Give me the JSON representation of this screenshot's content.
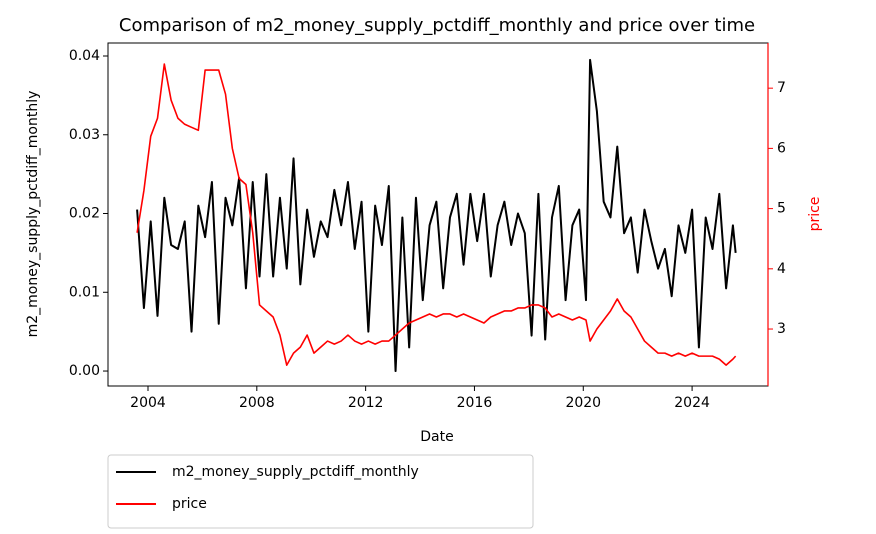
{
  "chart_data": {
    "type": "line",
    "title": "Comparison of m2_money_supply_pctdiff_monthly and price over time",
    "xlabel": "Date",
    "ylabel": "m2_money_supply_pctdiff_monthly",
    "y2label": "price",
    "x": [
      2003.6,
      2003.85,
      2004.1,
      2004.35,
      2004.6,
      2004.85,
      2005.1,
      2005.35,
      2005.6,
      2005.85,
      2006.1,
      2006.35,
      2006.6,
      2006.85,
      2007.1,
      2007.35,
      2007.6,
      2007.85,
      2008.1,
      2008.35,
      2008.6,
      2008.85,
      2009.1,
      2009.35,
      2009.6,
      2009.85,
      2010.1,
      2010.35,
      2010.6,
      2010.85,
      2011.1,
      2011.35,
      2011.6,
      2011.85,
      2012.1,
      2012.35,
      2012.6,
      2012.85,
      2013.1,
      2013.35,
      2013.6,
      2013.85,
      2014.1,
      2014.35,
      2014.6,
      2014.85,
      2015.1,
      2015.35,
      2015.6,
      2015.85,
      2016.1,
      2016.35,
      2016.6,
      2016.85,
      2017.1,
      2017.35,
      2017.6,
      2017.85,
      2018.1,
      2018.35,
      2018.6,
      2018.85,
      2019.1,
      2019.35,
      2019.6,
      2019.85,
      2020.1,
      2020.25,
      2020.5,
      2020.75,
      2021.0,
      2021.25,
      2021.5,
      2021.75,
      2022.0,
      2022.25,
      2022.5,
      2022.75,
      2023.0,
      2023.25,
      2023.5,
      2023.75,
      2024.0,
      2024.25,
      2024.5,
      2024.75,
      2025.0,
      2025.25,
      2025.5,
      2025.6
    ],
    "series": [
      {
        "name": "m2_money_supply_pctdiff_monthly",
        "color": "#000000",
        "values": [
          0.0205,
          0.008,
          0.019,
          0.007,
          0.022,
          0.016,
          0.0155,
          0.019,
          0.005,
          0.021,
          0.017,
          0.024,
          0.006,
          0.022,
          0.0185,
          0.0245,
          0.0105,
          0.024,
          0.012,
          0.025,
          0.012,
          0.022,
          0.013,
          0.027,
          0.011,
          0.0205,
          0.0145,
          0.019,
          0.017,
          0.023,
          0.0185,
          0.024,
          0.0155,
          0.0215,
          0.005,
          0.021,
          0.016,
          0.0235,
          0,
          0.0195,
          0.003,
          0.022,
          0.009,
          0.0185,
          0.0215,
          0.0105,
          0.0195,
          0.0225,
          0.0135,
          0.0225,
          0.0165,
          0.0225,
          0.012,
          0.0185,
          0.0215,
          0.016,
          0.02,
          0.0175,
          0.0045,
          0.0225,
          0.004,
          0.0195,
          0.0235,
          0.009,
          0.0185,
          0.0205,
          0.009,
          0.0395,
          0.033,
          0.0215,
          0.0195,
          0.0285,
          0.0175,
          0.0195,
          0.0125,
          0.0205,
          0.0165,
          0.013,
          0.0155,
          0.0095,
          0.0185,
          0.015,
          0.0205,
          0.003,
          0.0195,
          0.0155,
          0.0225,
          0.0105,
          0.0185,
          0.015
        ]
      },
      {
        "name": "price",
        "color": "#ff0000",
        "axis": "y2",
        "values": [
          4.6,
          5.3,
          6.2,
          6.5,
          7.4,
          6.8,
          6.5,
          6.4,
          6.35,
          6.3,
          7.3,
          7.3,
          7.3,
          6.9,
          6.0,
          5.5,
          5.4,
          4.6,
          3.4,
          3.3,
          3.2,
          2.9,
          2.4,
          2.6,
          2.7,
          2.9,
          2.6,
          2.7,
          2.8,
          2.75,
          2.8,
          2.9,
          2.8,
          2.75,
          2.8,
          2.75,
          2.8,
          2.8,
          2.9,
          3.0,
          3.1,
          3.15,
          3.2,
          3.25,
          3.2,
          3.25,
          3.25,
          3.2,
          3.25,
          3.2,
          3.15,
          3.1,
          3.2,
          3.25,
          3.3,
          3.3,
          3.35,
          3.35,
          3.4,
          3.4,
          3.35,
          3.2,
          3.25,
          3.2,
          3.15,
          3.2,
          3.15,
          2.8,
          3.0,
          3.15,
          3.3,
          3.5,
          3.3,
          3.2,
          3.0,
          2.8,
          2.7,
          2.6,
          2.6,
          2.55,
          2.6,
          2.55,
          2.6,
          2.55,
          2.55,
          2.55,
          2.5,
          2.4,
          2.5,
          2.55
        ]
      }
    ],
    "xlim": [
      2002.53,
      2026.79
    ],
    "xticks": [
      2004,
      2008,
      2012,
      2016,
      2020,
      2024
    ],
    "ylim": [
      -0.0019,
      0.04165
    ],
    "yticks": [
      {
        "value": 0,
        "label": "0.00"
      },
      {
        "value": 0.01,
        "label": "0.01"
      },
      {
        "value": 0.02,
        "label": "0.02"
      },
      {
        "value": 0.03,
        "label": "0.03"
      },
      {
        "value": 0.04,
        "label": "0.04"
      }
    ],
    "y2lim": [
      2.054,
      7.75
    ],
    "y2ticks": [
      3,
      4,
      5,
      6,
      7
    ],
    "legend": "below"
  }
}
